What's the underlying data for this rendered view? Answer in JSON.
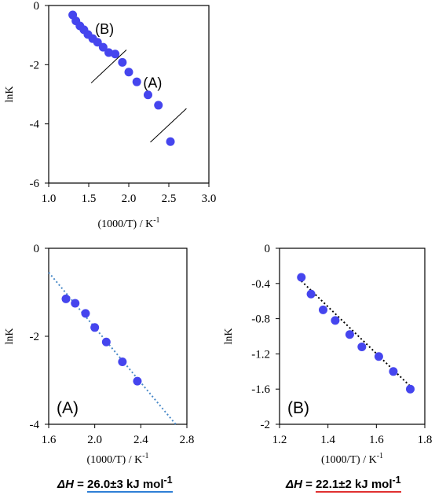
{
  "chart_data": [
    {
      "id": "overall",
      "type": "scatter",
      "xlabel": "(1000/T) / K",
      "xlabel_sup": "-1",
      "ylabel": "lnK",
      "xlim": [
        1.0,
        3.0
      ],
      "ylim": [
        -6,
        0
      ],
      "xticks": [
        "1.0",
        "1.5",
        "2.0",
        "2.5",
        "3.0"
      ],
      "yticks": [
        "0",
        "-2",
        "-4",
        "-6"
      ],
      "marker_color": "#4545ee",
      "annotations": [
        "(B)",
        "(A)"
      ],
      "x": [
        1.3,
        1.34,
        1.39,
        1.44,
        1.49,
        1.55,
        1.61,
        1.68,
        1.75,
        1.83,
        1.92,
        2.0,
        2.1,
        2.24,
        2.37,
        2.52
      ],
      "y": [
        -0.32,
        -0.52,
        -0.69,
        -0.82,
        -0.98,
        -1.12,
        -1.24,
        -1.41,
        -1.59,
        -1.64,
        -1.92,
        -2.25,
        -2.58,
        -3.02,
        -3.37,
        -4.6
      ]
    },
    {
      "id": "A",
      "type": "scatter",
      "panel_label": "(A)",
      "xlabel": "(1000/T) / K",
      "xlabel_sup": "-1",
      "ylabel": "lnK",
      "xlim": [
        1.6,
        2.8
      ],
      "ylim": [
        -4,
        0
      ],
      "xticks": [
        "1.6",
        "2.0",
        "2.4",
        "2.8"
      ],
      "yticks": [
        "0",
        "-2",
        "-4"
      ],
      "marker_color": "#4545ee",
      "trendline_color": "#4a8ac8",
      "x": [
        1.75,
        1.83,
        1.92,
        2.0,
        2.1,
        2.24,
        2.37
      ],
      "y": [
        -1.15,
        -1.25,
        -1.48,
        -1.8,
        -2.13,
        -2.58,
        -3.02
      ],
      "trendline": {
        "slope": -3.13,
        "intercept": 4.46
      }
    },
    {
      "id": "B",
      "type": "scatter",
      "panel_label": "(B)",
      "xlabel": "(1000/T) / K",
      "xlabel_sup": "-1",
      "ylabel": "lnK",
      "xlim": [
        1.2,
        1.8
      ],
      "ylim": [
        -2,
        0
      ],
      "xticks": [
        "1.2",
        "1.4",
        "1.6",
        "1.8"
      ],
      "yticks": [
        "0",
        "-0.4",
        "-0.8",
        "-1.2",
        "-1.6",
        "-2"
      ],
      "marker_color": "#4545ee",
      "trendline_color": "#000000",
      "x": [
        1.29,
        1.33,
        1.38,
        1.43,
        1.49,
        1.54,
        1.61,
        1.67,
        1.74
      ],
      "y": [
        -0.33,
        -0.52,
        -0.7,
        -0.82,
        -0.98,
        -1.12,
        -1.23,
        -1.4,
        -1.6
      ],
      "trendline": {
        "slope": -2.66,
        "intercept": 3.06
      }
    }
  ],
  "results": {
    "a": {
      "symbol": "ΔH",
      "eq": " = ",
      "value": "26.0±3",
      "unit": " kJ mol",
      "sup": "-1"
    },
    "b": {
      "symbol": "ΔH",
      "eq": " = ",
      "value": "22.1±2",
      "unit": " kJ mol",
      "sup": "-1"
    }
  }
}
